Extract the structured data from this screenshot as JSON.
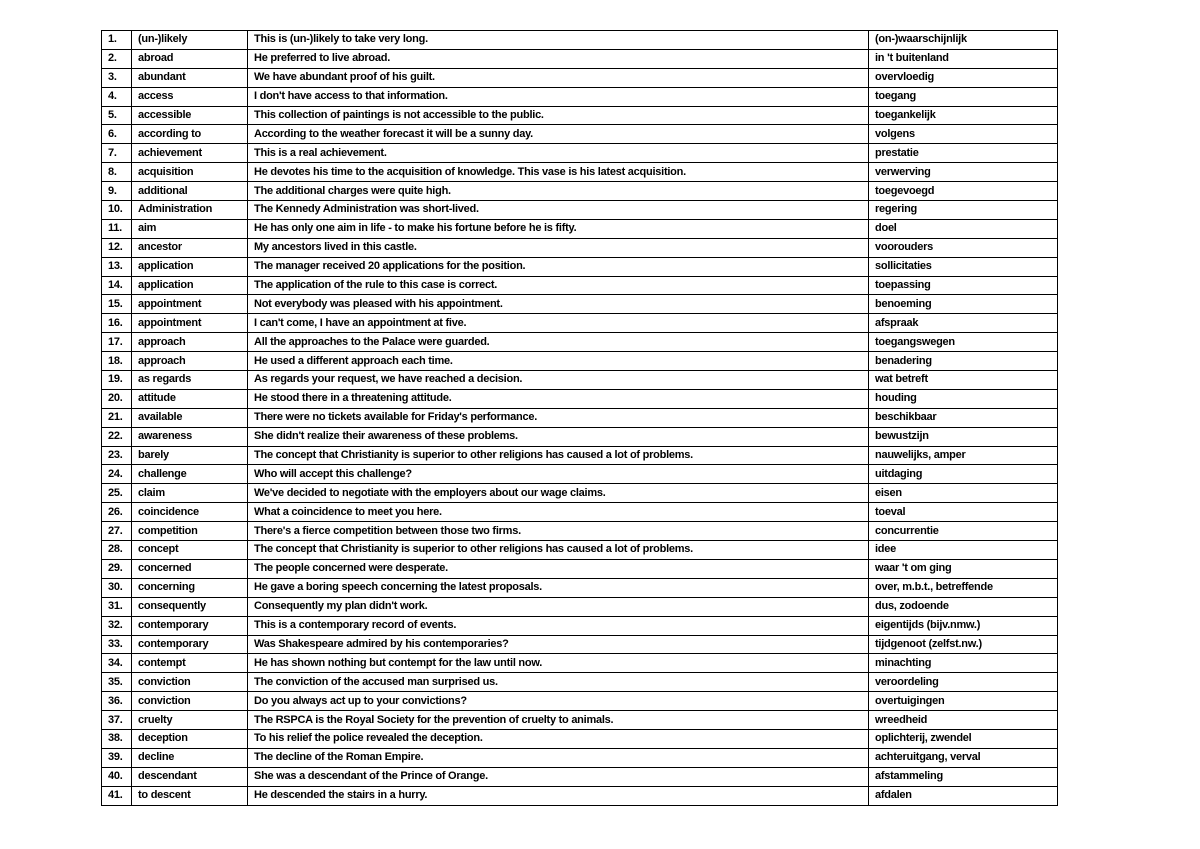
{
  "rows": [
    [
      "1.",
      "(un-)likely",
      "This is (un-)likely to take very long.",
      "(on-)waarschijnlijk"
    ],
    [
      "2.",
      "abroad",
      "He preferred to live abroad.",
      "in 't buitenland"
    ],
    [
      "3.",
      "abundant",
      "We have abundant proof of his guilt.",
      "overvloedig"
    ],
    [
      "4.",
      "access",
      "I don't have access to that information.",
      "toegang"
    ],
    [
      "5.",
      "accessible",
      "This collection of paintings is not accessible to the public.",
      "toegankelijk"
    ],
    [
      "6.",
      "according to",
      "According to the weather forecast it will be a sunny day.",
      "volgens"
    ],
    [
      "7.",
      "achievement",
      "This is a real achievement.",
      "prestatie"
    ],
    [
      "8.",
      "acquisition",
      "He devotes his time to the acquisition of knowledge. This vase is his latest acquisition.",
      "verwerving"
    ],
    [
      "9.",
      "additional",
      "The additional charges were quite high.",
      "toegevoegd"
    ],
    [
      "10.",
      "Administration",
      "The Kennedy Administration was short-lived.",
      "regering"
    ],
    [
      "11.",
      "aim",
      "He has only one aim in life - to make his fortune before he is fifty.",
      "doel"
    ],
    [
      "12.",
      "ancestor",
      "My ancestors lived in this castle.",
      "voorouders"
    ],
    [
      "13.",
      "application",
      "The manager received 20 applications for the position.",
      "sollicitaties"
    ],
    [
      "14.",
      "application",
      "The application of the rule to this case is correct.",
      "toepassing"
    ],
    [
      "15.",
      "appointment",
      "Not everybody was pleased with his appointment.",
      "benoeming"
    ],
    [
      "16.",
      "appointment",
      "I can't come, I have an appointment at five.",
      "afspraak"
    ],
    [
      "17.",
      "approach",
      "All the approaches to the Palace were guarded.",
      "toegangswegen"
    ],
    [
      "18.",
      "approach",
      "He used a different approach each time.",
      "benadering"
    ],
    [
      "19.",
      "as regards",
      "As regards your request, we have reached a decision.",
      "wat betreft"
    ],
    [
      "20.",
      "attitude",
      "He stood there in a threatening attitude.",
      "houding"
    ],
    [
      "21.",
      "available",
      "There were no tickets available for Friday's performance.",
      "beschikbaar"
    ],
    [
      "22.",
      "awareness",
      "She didn't realize their awareness of these problems.",
      "bewustzijn"
    ],
    [
      "23.",
      "barely",
      "The concept that Christianity is superior to other religions has caused a lot of problems.",
      "nauwelijks, amper"
    ],
    [
      "24.",
      "challenge",
      "Who will accept this challenge?",
      "uitdaging"
    ],
    [
      "25.",
      "claim",
      "We've decided to negotiate with the employers about our wage claims.",
      "eisen"
    ],
    [
      "26.",
      "coincidence",
      "What a coincidence to meet you here.",
      "toeval"
    ],
    [
      "27.",
      "competition",
      "There's a fierce competition between those two firms.",
      "concurrentie"
    ],
    [
      "28.",
      "concept",
      "The concept that Christianity is superior to other religions has caused a lot of problems.",
      "idee"
    ],
    [
      "29.",
      "concerned",
      "The people concerned were desperate.",
      "waar 't om ging"
    ],
    [
      "30.",
      "concerning",
      "He gave a boring speech concerning the latest proposals.",
      "over, m.b.t., betreffende"
    ],
    [
      "31.",
      "consequently",
      "Consequently my plan didn't work.",
      "dus, zodoende"
    ],
    [
      "32.",
      "contemporary",
      "This is a contemporary record of events.",
      "eigentijds (bijv.nmw.)"
    ],
    [
      "33.",
      "contemporary",
      "Was Shakespeare admired by his contemporaries?",
      "tijdgenoot (zelfst.nw.)"
    ],
    [
      "34.",
      "contempt",
      "He has shown nothing but contempt for the law until now.",
      "minachting"
    ],
    [
      "35.",
      "conviction",
      "The conviction of the accused man surprised us.",
      "veroordeling"
    ],
    [
      "36.",
      "conviction",
      "Do you always act up to your convictions?",
      "overtuigingen"
    ],
    [
      "37.",
      "cruelty",
      "The RSPCA is the Royal Society for the prevention of cruelty to animals.",
      "wreedheid"
    ],
    [
      "38.",
      "deception",
      "To his relief the police revealed the deception.",
      "oplichterij, zwendel"
    ],
    [
      "39.",
      "decline",
      "The decline of the Roman Empire.",
      "achteruitgang, verval"
    ],
    [
      "40.",
      "descendant",
      "She was a descendant of the Prince of Orange.",
      "afstammeling"
    ],
    [
      "41.",
      "to descent",
      "He descended the stairs in a hurry.",
      "afdalen"
    ]
  ]
}
